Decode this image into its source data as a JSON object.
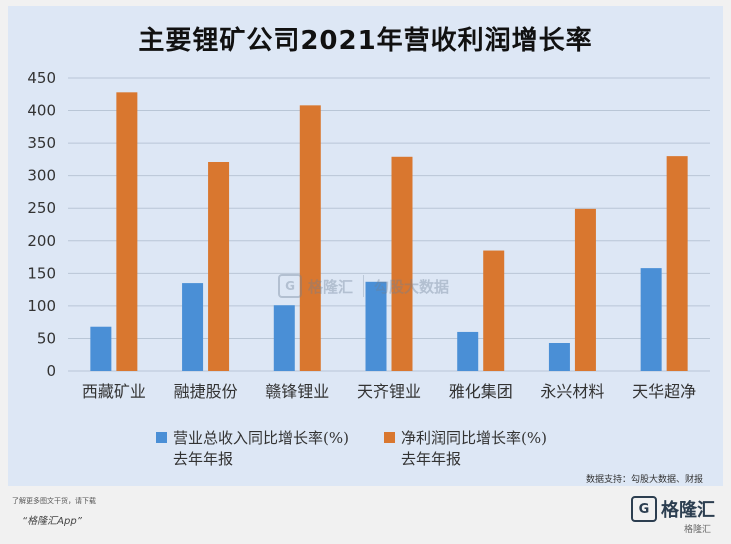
{
  "title": "主要锂矿公司2021年营收利润增长率",
  "chart_data": {
    "type": "bar",
    "categories": [
      "西藏矿业",
      "融捷股份",
      "赣锋锂业",
      "天齐锂业",
      "雅化集团",
      "永兴材料",
      "天华超净"
    ],
    "series": [
      {
        "name": "营业总收入同比增长率(%)去年年报",
        "color": "#4a8fd6",
        "values": [
          68,
          135,
          101,
          137,
          60,
          43,
          158
        ]
      },
      {
        "name": "净利润同比增长率(%)去年年报",
        "color": "#d9772f",
        "values": [
          428,
          321,
          408,
          329,
          185,
          249,
          330
        ]
      }
    ],
    "ylim": [
      0,
      450
    ],
    "yticks": [
      0,
      50,
      100,
      150,
      200,
      250,
      300,
      350,
      400,
      450
    ],
    "grid": true,
    "legend_position": "bottom"
  },
  "legend": {
    "s1_line1": "营业总收入同比增长率(%)",
    "s1_line2": "去年年报",
    "s2_line1": "净利润同比增长率(%)",
    "s2_line2": "去年年报"
  },
  "source": "数据支持：勾股大数据、财报",
  "watermark": {
    "logo": "G",
    "brand": "格隆汇",
    "sub_brand": "勾股大数据"
  },
  "promo": {
    "line1": "了解更多图文干货，请下载",
    "line2": "“格隆汇App”"
  },
  "footer": {
    "logo": "G",
    "brand": "格隆汇",
    "sub": "格隆汇"
  }
}
